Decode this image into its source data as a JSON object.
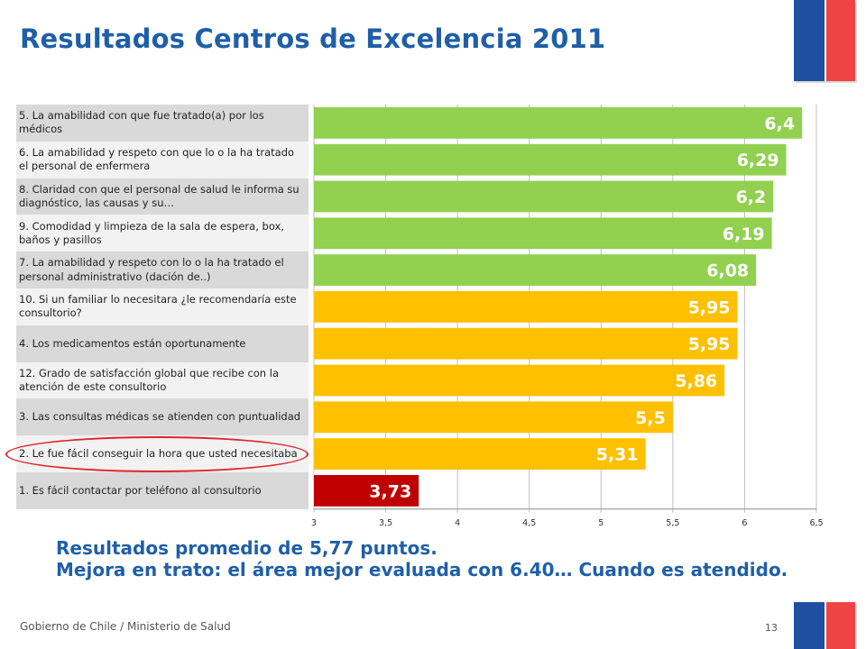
{
  "header": {
    "title": "Resultados Centros de Excelencia 2011"
  },
  "chart_data": {
    "type": "bar",
    "orientation": "horizontal",
    "title": "",
    "xlabel": "",
    "ylabel": "",
    "xlim": [
      3,
      6.5
    ],
    "x_ticks": [
      "3",
      "3,5",
      "4",
      "4,5",
      "5",
      "5,5",
      "6",
      "6,5"
    ],
    "x_tick_values": [
      3,
      3.5,
      4,
      4.5,
      5,
      5.5,
      6,
      6.5
    ],
    "grid": true,
    "categories": [
      "5. La amabilidad con que fue tratado(a) por los médicos",
      "6. La amabilidad y respeto con que lo o la ha tratado el personal de enfermera",
      "8. Claridad con que el personal de salud le informa su diagnóstico, las causas y su…",
      "9. Comodidad y limpieza de la sala de espera, box, baños y pasillos",
      "7. La amabilidad y respeto con lo o la ha tratado el personal administrativo (dación de..)",
      "10.  Si un familiar lo necesitara ¿le recomendaría este consultorio?",
      "4. Los medicamentos están oportunamente",
      "12.  Grado de satisfacción global que recibe con la atención de este consultorio",
      "3. Las consultas médicas se atienden con puntualidad",
      "2. Le fue fácil conseguir la hora que usted necesitaba",
      "1. Es fácil contactar por teléfono al consultorio"
    ],
    "values": [
      6.4,
      6.29,
      6.2,
      6.19,
      6.08,
      5.95,
      5.95,
      5.86,
      5.5,
      5.31,
      3.73
    ],
    "value_labels": [
      "6,4",
      "6,29",
      "6,2",
      "6,19",
      "6,08",
      "5,95",
      "5,95",
      "5,86",
      "5,5",
      "5,31",
      "3,73"
    ],
    "bar_colors": [
      "#92d050",
      "#92d050",
      "#92d050",
      "#92d050",
      "#92d050",
      "#ffc000",
      "#ffc000",
      "#ffc000",
      "#ffc000",
      "#ffc000",
      "#c00000"
    ],
    "highlighted_category_index": 9
  },
  "summary": {
    "line1": "Resultados promedio de 5,77 puntos.",
    "line2": "Mejora en trato: el área mejor evaluada con 6.40… Cuando es atendido."
  },
  "footer": {
    "organization": "Gobierno de Chile / Ministerio de Salud",
    "page_number": "13"
  },
  "colors": {
    "title_blue": "#1f5fa8",
    "flag_blue": "#1f4fa0",
    "flag_red": "#ef4444",
    "highlight_red": "#e0232a"
  }
}
